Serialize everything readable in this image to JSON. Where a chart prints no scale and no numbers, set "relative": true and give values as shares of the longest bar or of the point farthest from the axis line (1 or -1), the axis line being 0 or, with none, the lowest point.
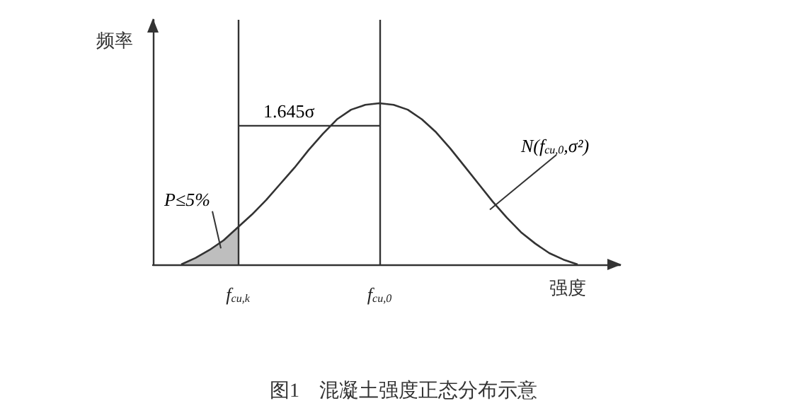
{
  "chart_data": {
    "type": "line",
    "relative": true,
    "title": "图1　混凝土强度正态分布示意",
    "xlabel": "强度",
    "ylabel": "频率",
    "categories": [
      null,
      null,
      null,
      null,
      null,
      null,
      "f$_{cu,k}$",
      null,
      null,
      null,
      null,
      null,
      null,
      null,
      null,
      null,
      "f$_{cu,0}$",
      null,
      null,
      null,
      null,
      null,
      null,
      null,
      null,
      null,
      null,
      null,
      null,
      null,
      null,
      null,
      null,
      null
    ],
    "series": [
      {
        "color": "#333333",
        "values": [
          null,
          null,
          0,
          0.04,
          0.09,
          0.15,
          0.23,
          0.31,
          0.4,
          0.5,
          0.6,
          0.71,
          0.81,
          0.9,
          0.96,
          0.99,
          1,
          0.99,
          0.96,
          0.9,
          0.82,
          0.72,
          0.61,
          0.5,
          0.39,
          0.29,
          0.2,
          0.13,
          0.07,
          0.03,
          0,
          null,
          null,
          null
        ]
      },
      {
        "type": "area",
        "color": "#888888",
        "values": [
          null,
          null,
          0,
          0.04,
          0.09,
          0.15,
          0.23,
          null,
          null,
          null,
          null,
          null,
          null,
          null,
          null,
          null,
          null,
          null,
          null,
          null,
          null,
          null,
          null,
          null,
          null,
          null,
          null,
          null,
          null,
          null,
          null,
          null,
          null,
          null
        ]
      }
    ],
    "ref_lines": [
      {
        "axis": "x",
        "value": "f$_{cu,k}$",
        "color": "#333333"
      },
      {
        "axis": "x",
        "value": "f$_{cu,0}$",
        "color": "#333333"
      }
    ],
    "annotations": [
      "1.645σ",
      "P≤5%",
      "N(f$_{cu,0}$,σ²)"
    ],
    "grid": false,
    "marker": "none",
    "line_style": "solid"
  }
}
